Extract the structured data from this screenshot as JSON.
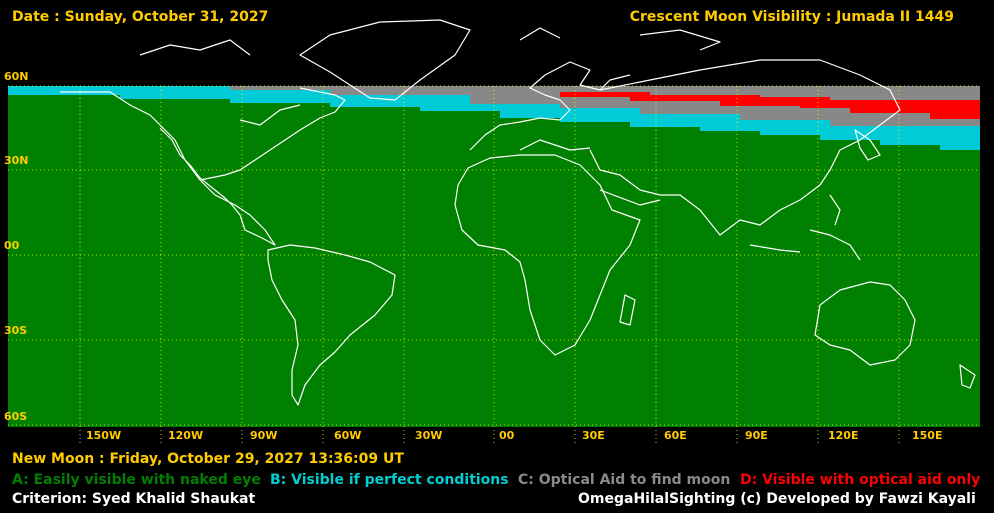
{
  "header": {
    "date": "Date : Sunday, October 31, 2027",
    "title": "Crescent Moon Visibility : Jumada II  1449"
  },
  "lat_labels": [
    "60N",
    "30N",
    "00",
    "30S",
    "60S"
  ],
  "lon_labels": [
    "150W",
    "120W",
    "90W",
    "60W",
    "30W",
    "00",
    "30E",
    "60E",
    "90E",
    "120E",
    "150E"
  ],
  "footer": {
    "new_moon": "New Moon : Friday, October 29, 2027  13:36:09  UT",
    "criterion": "Criterion: Syed Khalid Shaukat",
    "credit": "OmegaHilalSighting  (c)  Developed by Fawzi Kayali"
  },
  "legend": [
    {
      "label": "A: Easily visible with naked eye",
      "color": "#008000"
    },
    {
      "label": "B: Visible if perfect conditions",
      "color": "#00ced1"
    },
    {
      "label": "C: Optical Aid to find moon",
      "color": "#8a8a8a"
    },
    {
      "label": "D: Visible with optical aid only",
      "color": "#ff0000"
    }
  ],
  "colors": {
    "grid": "#ffff00",
    "coast": "#ffffff",
    "labels": "#ffcc00"
  }
}
